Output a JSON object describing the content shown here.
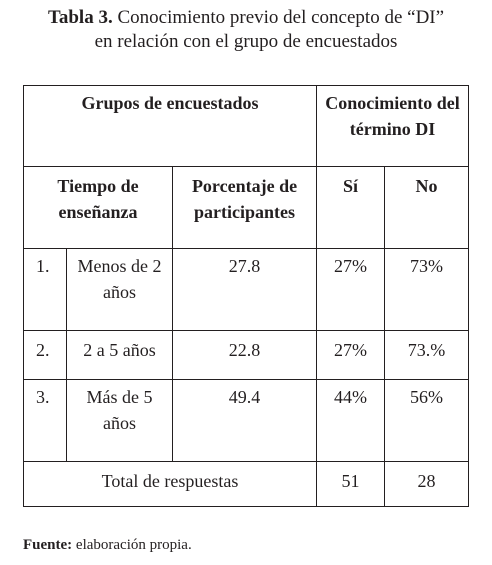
{
  "caption": {
    "label": "Tabla 3.",
    "text_lines": [
      "Conocimiento previo del concepto de “DI”",
      "en relación con el grupo de encuestados"
    ]
  },
  "table": {
    "header": {
      "group": "Grupos de encuestados",
      "knowledge": "Conocimiento del término DI",
      "columns": [
        "Tiempo de enseñanza",
        "Porcentaje de participantes",
        "Sí",
        "No"
      ]
    },
    "rows": [
      [
        "1.",
        "Menos de 2 años",
        "27.8",
        "27%",
        "73%"
      ],
      [
        "2.",
        "2 a 5 años",
        "22.8",
        "27%",
        "73.%"
      ],
      [
        "3.",
        "Más de 5 años",
        "49.4",
        "44%",
        "56%"
      ]
    ],
    "total": {
      "label": "Total de respuestas",
      "values": [
        "51",
        "28"
      ]
    }
  },
  "source": {
    "label": "Fuente:",
    "text": "elaboración propia."
  }
}
